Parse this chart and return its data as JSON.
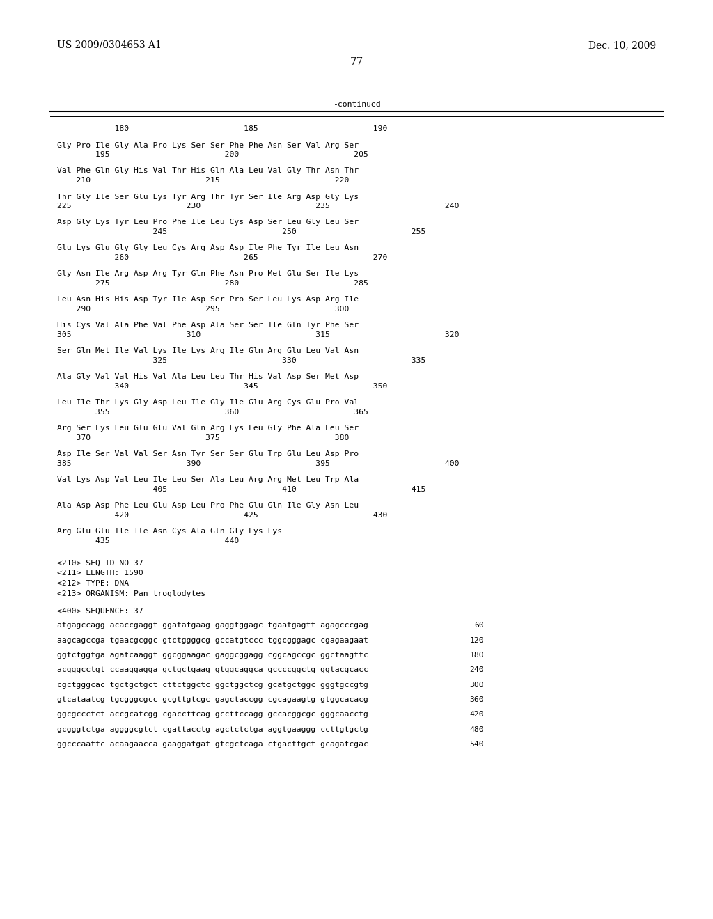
{
  "header_left": "US 2009/0304653 A1",
  "header_right": "Dec. 10, 2009",
  "page_number": "77",
  "continued_label": "-continued",
  "background_color": "#ffffff",
  "text_color": "#000000",
  "font_size_header": 10.0,
  "font_size_body": 8.2,
  "font_size_page": 11.0,
  "numbering_line": "            180                        185                        190",
  "sequence_blocks": [
    {
      "seq_line": "Gly Pro Ile Gly Ala Pro Lys Ser Ser Phe Phe Asn Ser Val Arg Ser",
      "num_line": "        195                        200                        205"
    },
    {
      "seq_line": "Val Phe Gln Gly His Val Thr His Gln Ala Leu Val Gly Thr Asn Thr",
      "num_line": "    210                        215                        220"
    },
    {
      "seq_line": "Thr Gly Ile Ser Glu Lys Tyr Arg Thr Tyr Ser Ile Arg Asp Gly Lys",
      "num_line": "225                        230                        235                        240"
    },
    {
      "seq_line": "Asp Gly Lys Tyr Leu Pro Phe Ile Leu Cys Asp Ser Leu Gly Leu Ser",
      "num_line": "                    245                        250                        255"
    },
    {
      "seq_line": "Glu Lys Glu Gly Gly Leu Cys Arg Asp Asp Ile Phe Tyr Ile Leu Asn",
      "num_line": "            260                        265                        270"
    },
    {
      "seq_line": "Gly Asn Ile Arg Asp Arg Tyr Gln Phe Asn Pro Met Glu Ser Ile Lys",
      "num_line": "        275                        280                        285"
    },
    {
      "seq_line": "Leu Asn His His Asp Tyr Ile Asp Ser Pro Ser Leu Lys Asp Arg Ile",
      "num_line": "    290                        295                        300"
    },
    {
      "seq_line": "His Cys Val Ala Phe Val Phe Asp Ala Ser Ser Ile Gln Tyr Phe Ser",
      "num_line": "305                        310                        315                        320"
    },
    {
      "seq_line": "Ser Gln Met Ile Val Lys Ile Lys Arg Ile Gln Arg Glu Leu Val Asn",
      "num_line": "                    325                        330                        335"
    },
    {
      "seq_line": "Ala Gly Val Val His Val Ala Leu Leu Thr His Val Asp Ser Met Asp",
      "num_line": "            340                        345                        350"
    },
    {
      "seq_line": "Leu Ile Thr Lys Gly Asp Leu Ile Gly Ile Glu Arg Cys Glu Pro Val",
      "num_line": "        355                        360                        365"
    },
    {
      "seq_line": "Arg Ser Lys Leu Glu Glu Val Gln Arg Lys Leu Gly Phe Ala Leu Ser",
      "num_line": "    370                        375                        380"
    },
    {
      "seq_line": "Asp Ile Ser Val Val Ser Asn Tyr Ser Ser Glu Trp Glu Leu Asp Pro",
      "num_line": "385                        390                        395                        400"
    },
    {
      "seq_line": "Val Lys Asp Val Leu Ile Leu Ser Ala Leu Arg Arg Met Leu Trp Ala",
      "num_line": "                    405                        410                        415"
    },
    {
      "seq_line": "Ala Asp Asp Phe Leu Glu Asp Leu Pro Phe Glu Gln Ile Gly Asn Leu",
      "num_line": "            420                        425                        430"
    },
    {
      "seq_line": "Arg Glu Glu Ile Ile Asn Cys Ala Gln Gly Lys Lys",
      "num_line": "        435                        440"
    }
  ],
  "meta_lines": [
    "<210> SEQ ID NO 37",
    "<211> LENGTH: 1590",
    "<212> TYPE: DNA",
    "<213> ORGANISM: Pan troglodytes"
  ],
  "sequence_label": "<400> SEQUENCE: 37",
  "dna_lines": [
    {
      "seq": "atgagccagg acaccgaggt ggatatgaag gaggtggagc tgaatgagtt agagcccgag",
      "num": "60"
    },
    {
      "seq": "aagcagccga tgaacgcggc gtctggggcg gccatgtccc tggcgggagc cgagaagaat",
      "num": "120"
    },
    {
      "seq": "ggtctggtga agatcaaggt ggcggaagac gaggcggagg cggcagccgc ggctaagttc",
      "num": "180"
    },
    {
      "seq": "acgggcctgt ccaaggagga gctgctgaag gtggcaggca gccccggctg ggtacgcacc",
      "num": "240"
    },
    {
      "seq": "cgctgggcac tgctgctgct cttctggctc ggctggctcg gcatgctggc gggtgccgtg",
      "num": "300"
    },
    {
      "seq": "gtcataatcg tgcgggcgcc gcgttgtcgc gagctaccgg cgcagaagtg gtggcacacg",
      "num": "360"
    },
    {
      "seq": "ggcgccctct accgcatcgg cgaccttcag gccttccagg gccacggcgc gggcaacctg",
      "num": "420"
    },
    {
      "seq": "gcgggtctga aggggcgtct cgattacctg agctctctga aggtgaaggg ccttgtgctg",
      "num": "480"
    },
    {
      "seq": "ggcccaattc acaagaacca gaaggatgat gtcgctcaga ctgacttgct gcagatcgac",
      "num": "540"
    }
  ]
}
